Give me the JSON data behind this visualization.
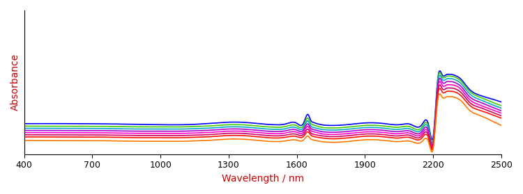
{
  "xlabel": "Wavelength / nm",
  "ylabel": "Absorbance",
  "xlabel_color": "#cc0000",
  "ylabel_color": "#cc0000",
  "xlim": [
    400,
    2500
  ],
  "x_ticks": [
    400,
    700,
    1000,
    1300,
    1600,
    1900,
    2200,
    2500
  ],
  "background_color": "#ffffff",
  "line_width": 1.2,
  "colors": [
    "#0000ff",
    "#44cc00",
    "#00aacc",
    "#aa00cc",
    "#ff00cc",
    "#cc0066",
    "#ff1100",
    "#ff7700"
  ],
  "knots_x": [
    400,
    600,
    800,
    900,
    1000,
    1100,
    1150,
    1200,
    1250,
    1300,
    1350,
    1400,
    1450,
    1500,
    1550,
    1600,
    1630,
    1650,
    1660,
    1670,
    1700,
    1750,
    1800,
    1850,
    1900,
    1950,
    2000,
    2050,
    2100,
    2150,
    2180,
    2200,
    2220,
    2240,
    2260,
    2270,
    2280,
    2300,
    2320,
    2340,
    2360,
    2400,
    2450,
    2500
  ],
  "spectra": [
    {
      "color": "#0000ff",
      "y": [
        0.85,
        0.85,
        0.84,
        0.83,
        0.82,
        0.82,
        0.83,
        0.85,
        0.87,
        0.89,
        0.89,
        0.87,
        0.84,
        0.82,
        0.84,
        0.86,
        0.87,
        1.1,
        0.95,
        0.89,
        0.83,
        0.8,
        0.81,
        0.84,
        0.87,
        0.87,
        0.84,
        0.82,
        0.83,
        0.82,
        0.8,
        0.5,
        2.1,
        2.2,
        2.22,
        2.22,
        2.22,
        2.18,
        2.1,
        1.95,
        1.8,
        1.65,
        1.55,
        1.45
      ]
    },
    {
      "color": "#44cc00",
      "y": [
        0.78,
        0.78,
        0.77,
        0.76,
        0.76,
        0.76,
        0.77,
        0.78,
        0.8,
        0.82,
        0.82,
        0.8,
        0.77,
        0.75,
        0.77,
        0.79,
        0.8,
        1.0,
        0.87,
        0.82,
        0.76,
        0.73,
        0.74,
        0.77,
        0.8,
        0.8,
        0.77,
        0.75,
        0.76,
        0.75,
        0.73,
        0.42,
        2.05,
        2.15,
        2.17,
        2.17,
        2.17,
        2.13,
        2.05,
        1.9,
        1.75,
        1.6,
        1.47,
        1.35
      ]
    },
    {
      "color": "#00aacc",
      "y": [
        0.72,
        0.72,
        0.71,
        0.7,
        0.7,
        0.7,
        0.71,
        0.72,
        0.74,
        0.76,
        0.76,
        0.74,
        0.71,
        0.69,
        0.71,
        0.73,
        0.74,
        0.92,
        0.8,
        0.75,
        0.7,
        0.67,
        0.68,
        0.71,
        0.74,
        0.74,
        0.71,
        0.69,
        0.7,
        0.69,
        0.67,
        0.38,
        1.98,
        2.08,
        2.1,
        2.1,
        2.1,
        2.06,
        1.98,
        1.83,
        1.68,
        1.53,
        1.4,
        1.28
      ]
    },
    {
      "color": "#aa00cc",
      "y": [
        0.66,
        0.66,
        0.65,
        0.64,
        0.64,
        0.64,
        0.65,
        0.66,
        0.68,
        0.7,
        0.7,
        0.68,
        0.65,
        0.63,
        0.65,
        0.67,
        0.68,
        0.84,
        0.73,
        0.69,
        0.64,
        0.61,
        0.62,
        0.65,
        0.68,
        0.68,
        0.65,
        0.63,
        0.64,
        0.63,
        0.61,
        0.34,
        1.9,
        2.0,
        2.02,
        2.02,
        2.02,
        1.98,
        1.9,
        1.75,
        1.6,
        1.46,
        1.33,
        1.21
      ]
    },
    {
      "color": "#ff00cc",
      "y": [
        0.6,
        0.6,
        0.59,
        0.58,
        0.58,
        0.58,
        0.59,
        0.6,
        0.62,
        0.64,
        0.64,
        0.62,
        0.59,
        0.57,
        0.59,
        0.61,
        0.62,
        0.77,
        0.67,
        0.63,
        0.58,
        0.55,
        0.56,
        0.59,
        0.62,
        0.62,
        0.59,
        0.57,
        0.58,
        0.57,
        0.55,
        0.3,
        1.82,
        1.91,
        1.93,
        1.93,
        1.93,
        1.9,
        1.82,
        1.67,
        1.52,
        1.38,
        1.26,
        1.14
      ]
    },
    {
      "color": "#cc0066",
      "y": [
        0.54,
        0.54,
        0.53,
        0.52,
        0.52,
        0.52,
        0.53,
        0.54,
        0.56,
        0.58,
        0.58,
        0.56,
        0.53,
        0.51,
        0.53,
        0.55,
        0.56,
        0.69,
        0.6,
        0.56,
        0.52,
        0.49,
        0.5,
        0.53,
        0.56,
        0.56,
        0.53,
        0.51,
        0.52,
        0.51,
        0.49,
        0.26,
        1.73,
        1.82,
        1.84,
        1.84,
        1.84,
        1.81,
        1.73,
        1.59,
        1.44,
        1.31,
        1.19,
        1.07
      ]
    },
    {
      "color": "#ff1100",
      "y": [
        0.48,
        0.48,
        0.47,
        0.46,
        0.46,
        0.46,
        0.47,
        0.48,
        0.5,
        0.52,
        0.52,
        0.5,
        0.47,
        0.45,
        0.47,
        0.49,
        0.5,
        0.62,
        0.54,
        0.5,
        0.46,
        0.43,
        0.44,
        0.47,
        0.5,
        0.5,
        0.47,
        0.45,
        0.46,
        0.45,
        0.43,
        0.22,
        1.64,
        1.73,
        1.75,
        1.75,
        1.75,
        1.72,
        1.64,
        1.5,
        1.36,
        1.23,
        1.12,
        1.0
      ]
    },
    {
      "color": "#ff7700",
      "y": [
        0.38,
        0.38,
        0.37,
        0.36,
        0.36,
        0.36,
        0.37,
        0.38,
        0.4,
        0.42,
        0.42,
        0.4,
        0.37,
        0.35,
        0.37,
        0.39,
        0.4,
        0.5,
        0.43,
        0.4,
        0.36,
        0.33,
        0.34,
        0.37,
        0.4,
        0.4,
        0.37,
        0.35,
        0.36,
        0.35,
        0.33,
        0.16,
        1.5,
        1.58,
        1.6,
        1.6,
        1.6,
        1.57,
        1.5,
        1.36,
        1.22,
        1.09,
        0.95,
        0.8
      ]
    }
  ]
}
